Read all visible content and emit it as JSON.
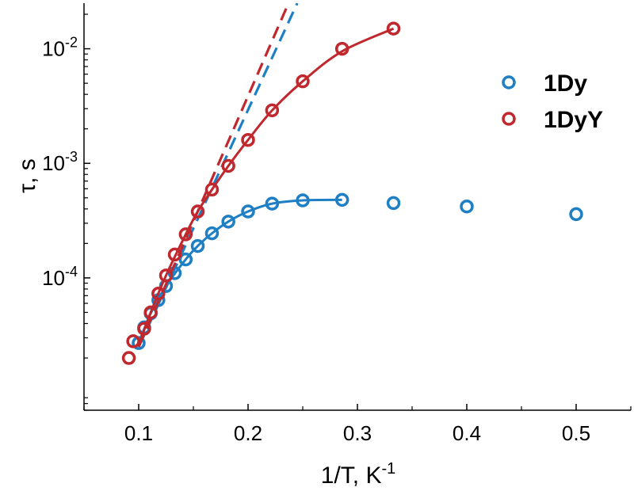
{
  "chart_data": {
    "type": "scatter",
    "xlabel": {
      "main": "1/T, K",
      "sup": "-1"
    },
    "ylabel": "τ, s",
    "yscale": "log",
    "xlim": [
      0.05,
      0.55
    ],
    "ylim": [
      7e-06,
      0.025
    ],
    "x_ticks": [
      0.1,
      0.2,
      0.3,
      0.4,
      0.5
    ],
    "x_tick_labels": [
      "0.1",
      "0.2",
      "0.3",
      "0.4",
      "0.5"
    ],
    "y_ticks": [
      0.0001,
      0.001,
      0.01
    ],
    "y_tick_labels": [
      {
        "base": "10",
        "exp": "-4"
      },
      {
        "base": "10",
        "exp": "-3"
      },
      {
        "base": "10",
        "exp": "-2"
      }
    ],
    "legend_position": "top-right",
    "series": [
      {
        "name": "1Dy",
        "color": "#1f7fc4",
        "marker": "open-circle",
        "x": [
          0.1,
          0.105,
          0.111,
          0.118,
          0.125,
          0.133,
          0.143,
          0.154,
          0.167,
          0.182,
          0.2,
          0.222,
          0.25,
          0.286,
          0.333,
          0.4,
          0.5
        ],
        "y": [
          2.7e-05,
          3.7e-05,
          4.9e-05,
          6.4e-05,
          8.5e-05,
          0.00011,
          0.000145,
          0.00019,
          0.000245,
          0.00031,
          0.00038,
          0.000445,
          0.000475,
          0.00048,
          0.00045,
          0.00042,
          0.00036
        ],
        "fit": {
          "x": [
            0.1,
            0.111,
            0.125,
            0.143,
            0.154,
            0.167,
            0.182,
            0.2,
            0.222,
            0.25,
            0.286
          ],
          "y": [
            2.7e-05,
            4.9e-05,
            8.5e-05,
            0.000145,
            0.00019,
            0.000245,
            0.00031,
            0.00038,
            0.000445,
            0.000475,
            0.00048
          ]
        },
        "orbach": {
          "x": [
            0.1,
            0.245
          ],
          "y": [
            2.5e-05,
            0.025
          ]
        }
      },
      {
        "name": "1DyY",
        "color": "#c0282d",
        "marker": "open-circle",
        "x": [
          0.091,
          0.095,
          0.105,
          0.111,
          0.118,
          0.125,
          0.133,
          0.143,
          0.154,
          0.167,
          0.182,
          0.2,
          0.222,
          0.25,
          0.286,
          0.333
        ],
        "y": [
          2e-05,
          2.8e-05,
          3.6e-05,
          5e-05,
          7.3e-05,
          0.000105,
          0.00016,
          0.00024,
          0.00038,
          0.00059,
          0.00095,
          0.0016,
          0.0029,
          0.0052,
          0.01,
          0.015
        ],
        "fit": {
          "x": [
            0.1,
            0.111,
            0.125,
            0.143,
            0.154,
            0.167,
            0.182,
            0.2,
            0.222,
            0.25,
            0.286,
            0.333
          ],
          "y": [
            2.6e-05,
            5e-05,
            0.000105,
            0.00024,
            0.00038,
            0.00059,
            0.00095,
            0.0016,
            0.0029,
            0.0052,
            0.0095,
            0.015
          ]
        },
        "orbach": {
          "x": [
            0.1,
            0.237
          ],
          "y": [
            2.5e-05,
            0.025
          ]
        }
      }
    ]
  }
}
